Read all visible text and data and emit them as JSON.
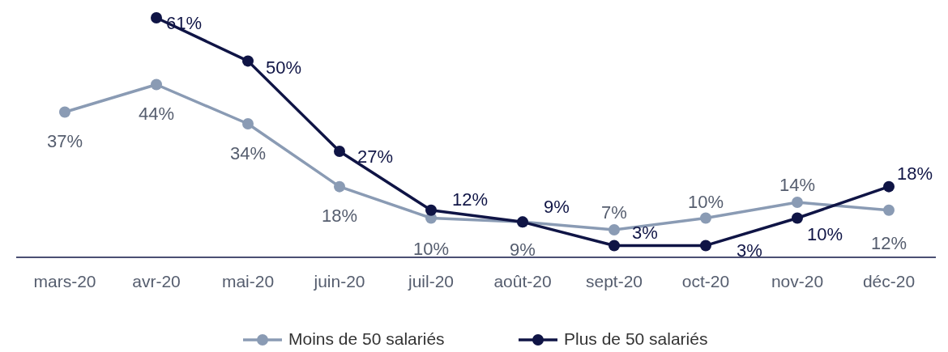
{
  "chart_data": {
    "type": "line",
    "categories": [
      "mars-20",
      "avr-20",
      "mai-20",
      "juin-20",
      "juil-20",
      "août-20",
      "sept-20",
      "oct-20",
      "nov-20",
      "déc-20"
    ],
    "tick_labels": "x",
    "legend": "bottom",
    "marker": "circle",
    "line_style": "solid",
    "series": [
      {
        "name": "Moins de 50 salariés",
        "color": "#8a9bb4",
        "values": [
          37,
          44,
          34,
          18,
          10,
          9,
          7,
          10,
          14,
          12
        ],
        "value_labels": [
          "37%",
          "44%",
          "34%",
          "18%",
          "10%",
          "9%",
          "7%",
          "10%",
          "14%",
          "12%"
        ]
      },
      {
        "name": "Plus de 50 salariés",
        "color": "#0f1445",
        "values": [
          null,
          61,
          50,
          27,
          12,
          9,
          3,
          3,
          10,
          18
        ],
        "value_labels": [
          null,
          "61%",
          "50%",
          "27%",
          "12%",
          "9%",
          "3%",
          "3%",
          "10%",
          "18%"
        ]
      }
    ]
  }
}
